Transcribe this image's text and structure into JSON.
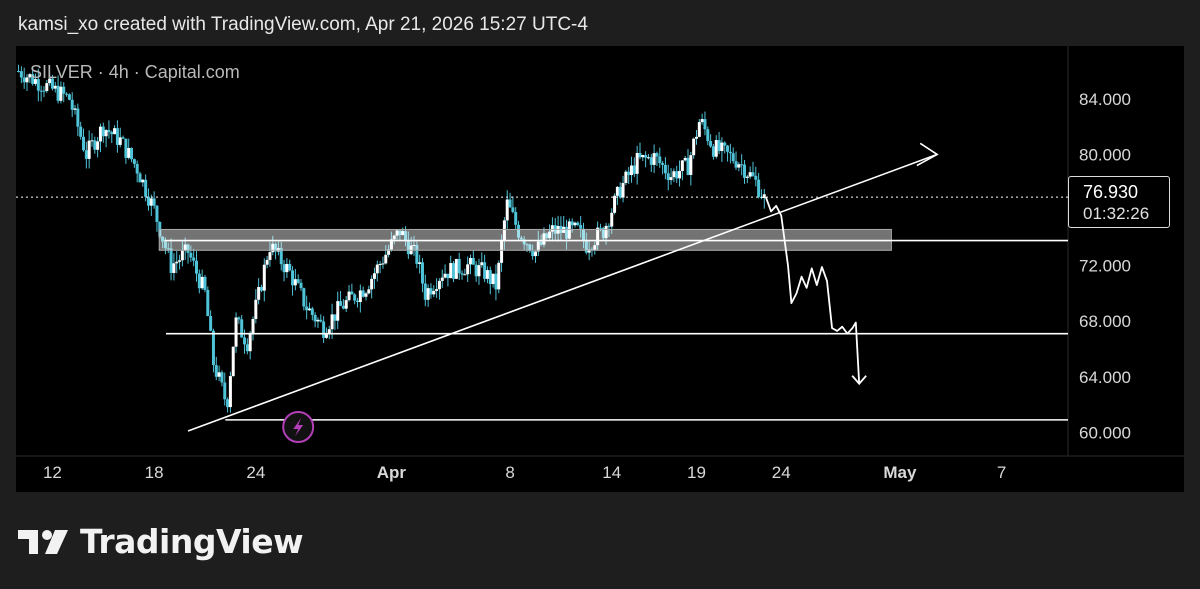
{
  "header": {
    "caption": "kamsi_xo created with TradingView.com, Apr 21, 2026 15:27 UTC-4"
  },
  "symbol_line": "SILVER · 4h · Capital.com",
  "price_tag": {
    "price": "76.930",
    "countdown": "01:32:26"
  },
  "brand": {
    "name": "TradingView"
  },
  "colors": {
    "background": "#000000",
    "candle": "#4fc3d8",
    "annotation": "#ffffff",
    "event_icon": "#b23fb8"
  },
  "icons": {
    "event": "lightning-bolt-icon",
    "logo": "tradingview-logo-icon"
  },
  "chart_data": {
    "type": "candlestick",
    "symbol": "SILVER",
    "timeframe": "4h",
    "source": "Capital.com",
    "last_price": 76.93,
    "ylim": [
      58.3,
      87.8
    ],
    "y_ticks": [
      "84.000",
      "80.000",
      "76.000",
      "72.000",
      "68.000",
      "64.000",
      "60.000"
    ],
    "x_ticks": [
      {
        "label": "12",
        "day": 12
      },
      {
        "label": "18",
        "day": 18
      },
      {
        "label": "24",
        "day": 24
      },
      {
        "label": "Apr",
        "day": 32
      },
      {
        "label": "8",
        "day": 39
      },
      {
        "label": "14",
        "day": 45
      },
      {
        "label": "19",
        "day": 50
      },
      {
        "label": "24",
        "day": 55
      },
      {
        "label": "May",
        "day": 62
      },
      {
        "label": "7",
        "day": 68
      }
    ],
    "x_domain_days": [
      9.85,
      71.92
    ],
    "close_path": [
      [
        10.0,
        86.0
      ],
      [
        11.5,
        85.0
      ],
      [
        13.0,
        84.0
      ],
      [
        14.0,
        80.0
      ],
      [
        15.0,
        82.0
      ],
      [
        16.0,
        81.0
      ],
      [
        17.0,
        79.0
      ],
      [
        18.0,
        76.0
      ],
      [
        19.0,
        72.0
      ],
      [
        20.0,
        73.0
      ],
      [
        21.0,
        70.0
      ],
      [
        21.5,
        65.0
      ],
      [
        22.3,
        62.0
      ],
      [
        22.8,
        68.0
      ],
      [
        23.5,
        66.5
      ],
      [
        24.2,
        70.0
      ],
      [
        24.8,
        73.5
      ],
      [
        26.0,
        71.5
      ],
      [
        27.0,
        69.0
      ],
      [
        28.0,
        67.5
      ],
      [
        29.0,
        69.0
      ],
      [
        30.5,
        70.5
      ],
      [
        31.5,
        72.5
      ],
      [
        32.5,
        74.5
      ],
      [
        33.5,
        72.5
      ],
      [
        34.0,
        70.0
      ],
      [
        35.0,
        71.5
      ],
      [
        36.5,
        72.0
      ],
      [
        37.5,
        71.5
      ],
      [
        38.2,
        70.5
      ],
      [
        38.8,
        76.5
      ],
      [
        39.5,
        74.5
      ],
      [
        40.5,
        73.0
      ],
      [
        41.5,
        74.5
      ],
      [
        43.0,
        74.5
      ],
      [
        43.5,
        73.5
      ],
      [
        44.5,
        74.5
      ],
      [
        45.5,
        77.5
      ],
      [
        46.5,
        79.5
      ],
      [
        47.5,
        79.8
      ],
      [
        48.5,
        78.5
      ],
      [
        49.5,
        79.2
      ],
      [
        50.2,
        82.5
      ],
      [
        51.0,
        80.5
      ],
      [
        52.5,
        79.5
      ],
      [
        53.5,
        78.0
      ],
      [
        54.0,
        76.8
      ]
    ],
    "annotations": {
      "trendline": {
        "from": [
          48.7,
          59.2
        ],
        "to": [
          64.8,
          80.0
        ],
        "arrow": true
      },
      "resistance_zone": {
        "day_start": 18.3,
        "day_end": 61.5,
        "price_low": 73.1,
        "price_high": 74.6
      },
      "horizontal_lines": [
        {
          "day_start": 18.6,
          "price": 73.8
        },
        {
          "day_start": 18.7,
          "price": 67.1
        },
        {
          "day_start": 22.2,
          "price": 60.9
        }
      ],
      "projection_path": [
        [
          54.1,
          76.9
        ],
        [
          54.4,
          75.9
        ],
        [
          54.7,
          76.3
        ],
        [
          55.0,
          75.6
        ],
        [
          55.4,
          72.0
        ],
        [
          55.6,
          69.3
        ],
        [
          55.9,
          70.0
        ],
        [
          56.2,
          71.2
        ],
        [
          56.5,
          70.4
        ],
        [
          56.8,
          71.8
        ],
        [
          57.1,
          70.6
        ],
        [
          57.4,
          71.9
        ],
        [
          57.7,
          70.9
        ],
        [
          58.0,
          67.5
        ],
        [
          58.3,
          67.3
        ],
        [
          58.6,
          67.6
        ],
        [
          58.9,
          67.1
        ],
        [
          59.2,
          67.5
        ],
        [
          59.4,
          67.9
        ],
        [
          59.6,
          63.5
        ]
      ],
      "event_marker_day": 26.5
    }
  }
}
